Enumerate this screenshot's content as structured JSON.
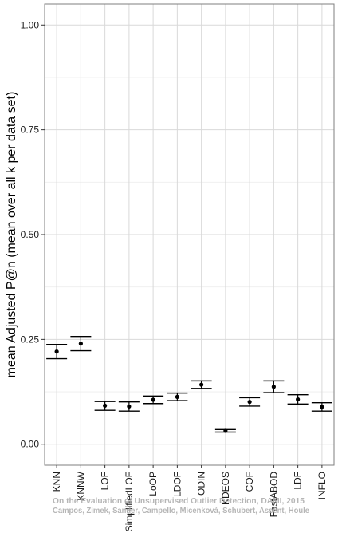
{
  "chart_data": {
    "type": "scatter",
    "subtype": "mean-with-error-bars",
    "title": "",
    "xlabel": "",
    "ylabel": "mean Adjusted P@n (mean over all k per data set)",
    "ylim": [
      -0.05,
      1.05
    ],
    "yticks": [
      "0.00",
      "0.25",
      "0.50",
      "0.75",
      "1.00"
    ],
    "ytick_values": [
      0,
      0.25,
      0.5,
      0.75,
      1.0
    ],
    "grid": true,
    "legend": "none",
    "categories": [
      "KNN",
      "KNNW",
      "LOF",
      "SimplifiedLOF",
      "LoOP",
      "LDOF",
      "ODIN",
      "KDEOS",
      "COF",
      "FastABOD",
      "LDF",
      "INFLO"
    ],
    "series": [
      {
        "mean": [
          0.221,
          0.24,
          0.092,
          0.09,
          0.106,
          0.113,
          0.142,
          0.032,
          0.101,
          0.137,
          0.107,
          0.089
        ],
        "lower": [
          0.204,
          0.223,
          0.081,
          0.079,
          0.097,
          0.104,
          0.133,
          0.029,
          0.091,
          0.123,
          0.096,
          0.079
        ],
        "upper": [
          0.238,
          0.257,
          0.102,
          0.101,
          0.115,
          0.122,
          0.151,
          0.035,
          0.111,
          0.151,
          0.118,
          0.099
        ]
      }
    ],
    "colors": {
      "marks": "#000000",
      "grid": "#d9d9d9",
      "minor_grid": "#eeeeee",
      "panel_border": "#7f7f7f"
    }
  },
  "watermark": {
    "line1": "On the Evaluation of Unsupervised Outlier Detection, DAMI, 2015",
    "line2": "Campos, Zimek, Sander, Campello, Micenková, Schubert, Assent, Houle"
  }
}
